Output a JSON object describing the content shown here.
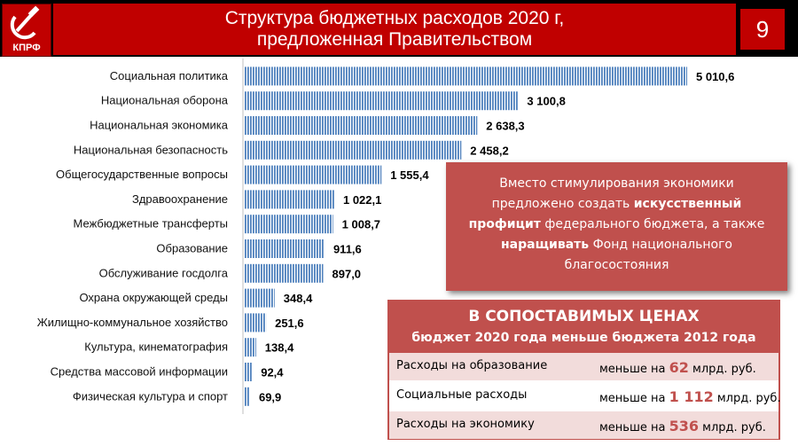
{
  "header": {
    "logo_text": "КПРФ",
    "title_line1": "Структура бюджетных расходов 2020 г,",
    "title_line2": "предложенная Правительством",
    "page_number": "9"
  },
  "chart_data": {
    "type": "bar",
    "orientation": "horizontal",
    "title": "Структура бюджетных расходов 2020 г, предложенная Правительством",
    "categories": [
      "Социальная политика",
      "Национальная оборона",
      "Национальная экономика",
      "Национальная безопасность",
      "Общегосударственные вопросы",
      "Здравоохранение",
      "Межбюджетные трансферты",
      "Образование",
      "Обслуживание госдолга",
      "Охрана окружающей среды",
      "Жилищно-коммунальное хозяйство",
      "Культура, кинематография",
      "Средства массовой информации",
      "Физическая культура и спорт"
    ],
    "values": [
      5010.6,
      3100.8,
      2638.3,
      2458.2,
      1555.4,
      1022.1,
      1008.7,
      911.6,
      897.0,
      348.4,
      251.6,
      138.4,
      92.4,
      69.9
    ],
    "value_labels": [
      "5 010,6",
      "3 100,8",
      "2 638,3",
      "2 458,2",
      "1 555,4",
      "1 022,1",
      "1 008,7",
      "911,6",
      "897,0",
      "348,4",
      "251,6",
      "138,4",
      "92,4",
      "69,9"
    ],
    "bar_color": "#5b8ec9",
    "grid": false,
    "legend": "none"
  },
  "callout": {
    "part1": "Вместо стимулирования экономики предложено создать ",
    "bold1": "искусственный профицит",
    "part2": " федерального бюджета, а также ",
    "bold2": "наращивать",
    "part3": " Фонд национального благосостояния"
  },
  "comparison": {
    "heading": "В СОПОСТАВИМЫХ ЦЕНАХ",
    "subheading": "бюджет 2020 года меньше бюджета 2012 года",
    "rows": [
      {
        "name": "Расходы на образование",
        "prefix": "меньше на",
        "amount": "62",
        "unit": "млрд. руб."
      },
      {
        "name": "Социальные расходы",
        "prefix": "меньше на",
        "amount": "1 112",
        "unit": "млрд. руб."
      },
      {
        "name": "Расходы на экономику",
        "prefix": "меньше на",
        "amount": "536",
        "unit": "млрд. руб."
      }
    ]
  },
  "colors": {
    "brand_red": "#c00000",
    "callout_red": "#c0504d",
    "row_tint": "#f2dcdb",
    "bar_blue": "#5b8ec9"
  }
}
